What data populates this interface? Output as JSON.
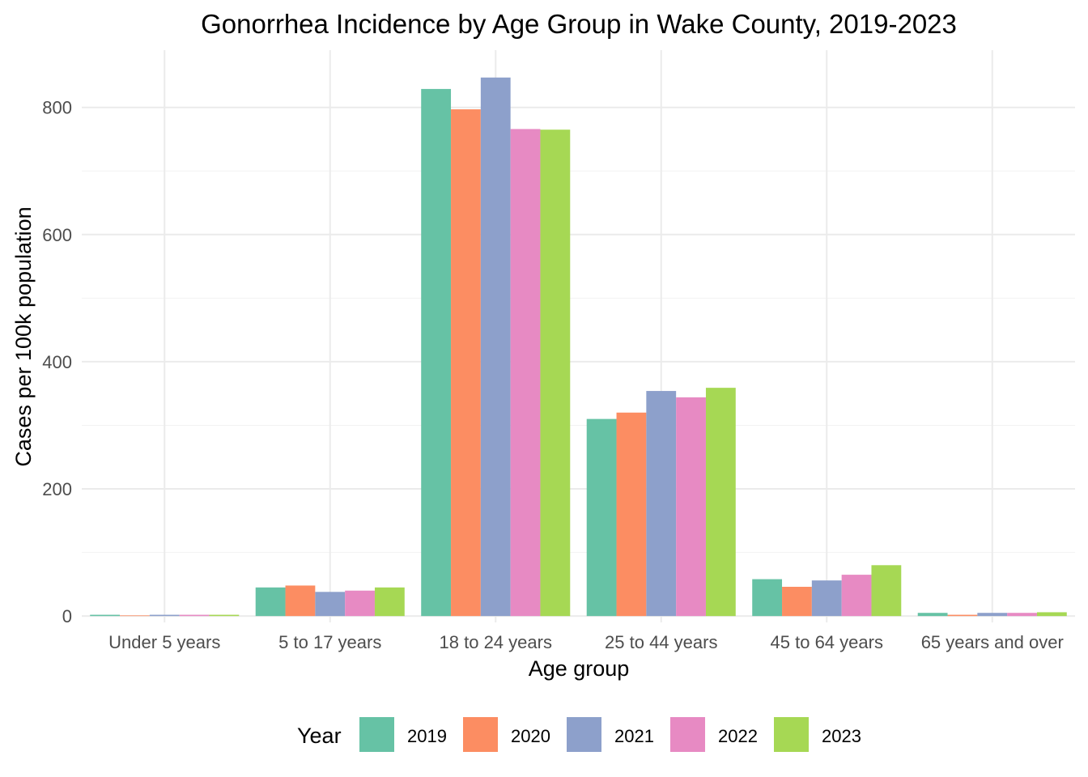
{
  "chart_data": {
    "type": "bar",
    "title": "Gonorrhea Incidence by Age Group in Wake County, 2019-2023",
    "xlabel": "Age group",
    "ylabel": "Cases per 100k population",
    "categories": [
      "Under 5 years",
      "5 to 17 years",
      "18 to 24 years",
      "25 to 44 years",
      "45 to 64 years",
      "65 years and over"
    ],
    "ylim": [
      -10,
      890
    ],
    "yticks": [
      0,
      200,
      400,
      600,
      800
    ],
    "ytick_labels": [
      "0",
      "200",
      "400",
      "600",
      "800"
    ],
    "grid": true,
    "legend": {
      "title": "Year",
      "position": "bottom"
    },
    "series": [
      {
        "name": "2019",
        "color": "#66c2a5",
        "values": [
          2,
          45,
          829,
          310,
          58,
          5
        ]
      },
      {
        "name": "2020",
        "color": "#fc8d62",
        "values": [
          1,
          48,
          797,
          320,
          46,
          2
        ]
      },
      {
        "name": "2021",
        "color": "#8da0cb",
        "values": [
          2,
          38,
          847,
          354,
          56,
          5
        ]
      },
      {
        "name": "2022",
        "color": "#e78ac3",
        "values": [
          2,
          40,
          766,
          344,
          65,
          5
        ]
      },
      {
        "name": "2023",
        "color": "#a6d854",
        "values": [
          2,
          45,
          765,
          359,
          80,
          6
        ]
      }
    ]
  }
}
